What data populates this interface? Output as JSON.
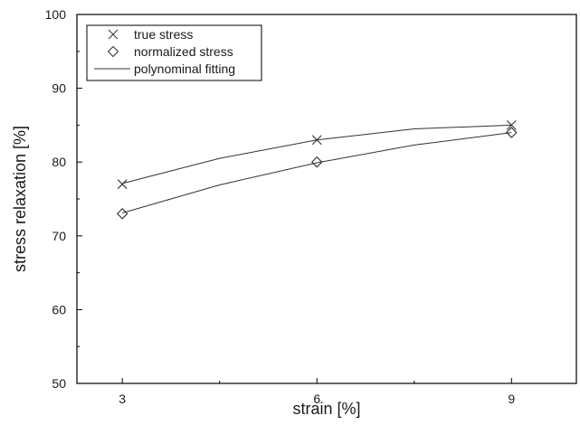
{
  "chart_data": {
    "type": "scatter",
    "xlabel": "strain [%]",
    "ylabel": "stress relaxation [%]",
    "xlim": [
      2.3,
      10.0
    ],
    "ylim": [
      50,
      100
    ],
    "xticks": [
      3,
      6,
      9
    ],
    "yticks": [
      50,
      60,
      70,
      80,
      90,
      100
    ],
    "grid": false,
    "legend_position": "top-left",
    "series": [
      {
        "name": "true stress",
        "marker": "cross",
        "x": [
          3,
          6,
          9
        ],
        "y": [
          77,
          83,
          85
        ]
      },
      {
        "name": "normalized stress",
        "marker": "diamond",
        "x": [
          3,
          6,
          9
        ],
        "y": [
          73,
          80,
          84
        ]
      }
    ],
    "fits": [
      {
        "name": "polynominal fitting",
        "of": "true stress",
        "x": [
          3,
          4.5,
          6,
          7.5,
          9
        ],
        "y": [
          77.1,
          80.5,
          83.0,
          84.5,
          85.0
        ]
      },
      {
        "name": "polynominal fitting",
        "of": "normalized stress",
        "x": [
          3,
          4.5,
          6,
          7.5,
          9
        ],
        "y": [
          73.1,
          76.9,
          79.9,
          82.3,
          84.0
        ]
      }
    ],
    "legend": [
      "true stress",
      "normalized stress",
      "polynominal fitting"
    ],
    "colors": {
      "marker": "#333333",
      "line": "#333333",
      "axis": "#000000"
    }
  }
}
